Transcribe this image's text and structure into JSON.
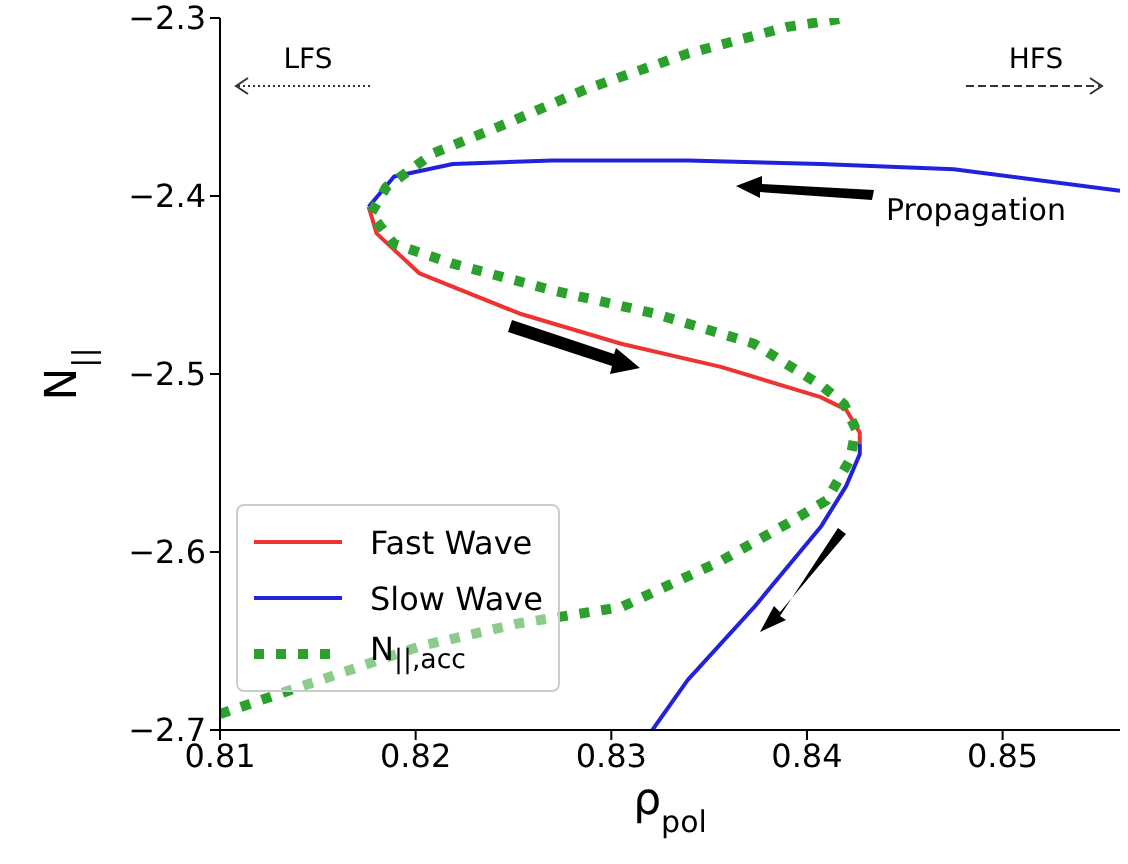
{
  "chart_data": {
    "type": "line",
    "xlabel": "ρ$_{pol}$",
    "ylabel": "N$_{||}$",
    "xlim": [
      0.81,
      0.856
    ],
    "xticks": [
      0.81,
      0.82,
      0.83,
      0.84,
      0.85
    ],
    "ylim": [
      -2.7,
      -2.3
    ],
    "yticks": [
      -2.7,
      -2.6,
      -2.5,
      -2.4,
      -2.3
    ],
    "grid": false,
    "legend": "bottom left",
    "marker": "none",
    "annotations": [
      "LFS",
      "HFS",
      "Propagation"
    ],
    "series": [
      {
        "name": "Fast Wave",
        "color": "#ee3333",
        "line_style": "solid",
        "x": [
          0.8176,
          0.818,
          0.8202,
          0.8253,
          0.8305,
          0.8356,
          0.8407,
          0.842,
          0.8427,
          0.8427
        ],
        "values": [
          -2.406,
          -2.421,
          -2.4435,
          -2.466,
          -2.483,
          -2.496,
          -2.513,
          -2.52,
          -2.533,
          -2.539
        ]
      },
      {
        "name": "Slow Wave",
        "color": "#2222dd",
        "line_style": "solid",
        "x": [
          0.856,
          0.8475,
          0.8407,
          0.8339,
          0.827,
          0.8219,
          0.8189,
          0.8176,
          null,
          0.8427,
          0.8427,
          0.842,
          0.8407,
          0.8373,
          0.8339,
          0.8321
        ],
        "values": [
          -2.397,
          -2.385,
          -2.382,
          -2.38,
          -2.38,
          -2.382,
          -2.389,
          -2.406,
          null,
          -2.539,
          -2.545,
          -2.563,
          -2.586,
          -2.631,
          -2.672,
          -2.7
        ]
      },
      {
        "name": "N$_{||,acc}$",
        "color": "#2ca02c",
        "line_style": "dotted",
        "x": [
          0.81,
          0.8151,
          0.8202,
          0.8253,
          0.8305,
          0.8356,
          0.839,
          0.841,
          0.8422,
          0.8425,
          0.8419,
          0.8408,
          0.8373,
          0.8322,
          0.827,
          0.8219,
          0.8189,
          0.8177,
          0.8185,
          0.8209,
          0.8247,
          0.8287,
          0.8339,
          0.839,
          0.842
        ],
        "values": [
          -2.691,
          -2.672,
          -2.653,
          -2.64,
          -2.631,
          -2.605,
          -2.584,
          -2.571,
          -2.548,
          -2.531,
          -2.517,
          -2.507,
          -2.483,
          -2.466,
          -2.453,
          -2.438,
          -2.427,
          -2.41,
          -2.395,
          -2.376,
          -2.359,
          -2.34,
          -2.32,
          -2.305,
          -2.3
        ]
      }
    ]
  }
}
